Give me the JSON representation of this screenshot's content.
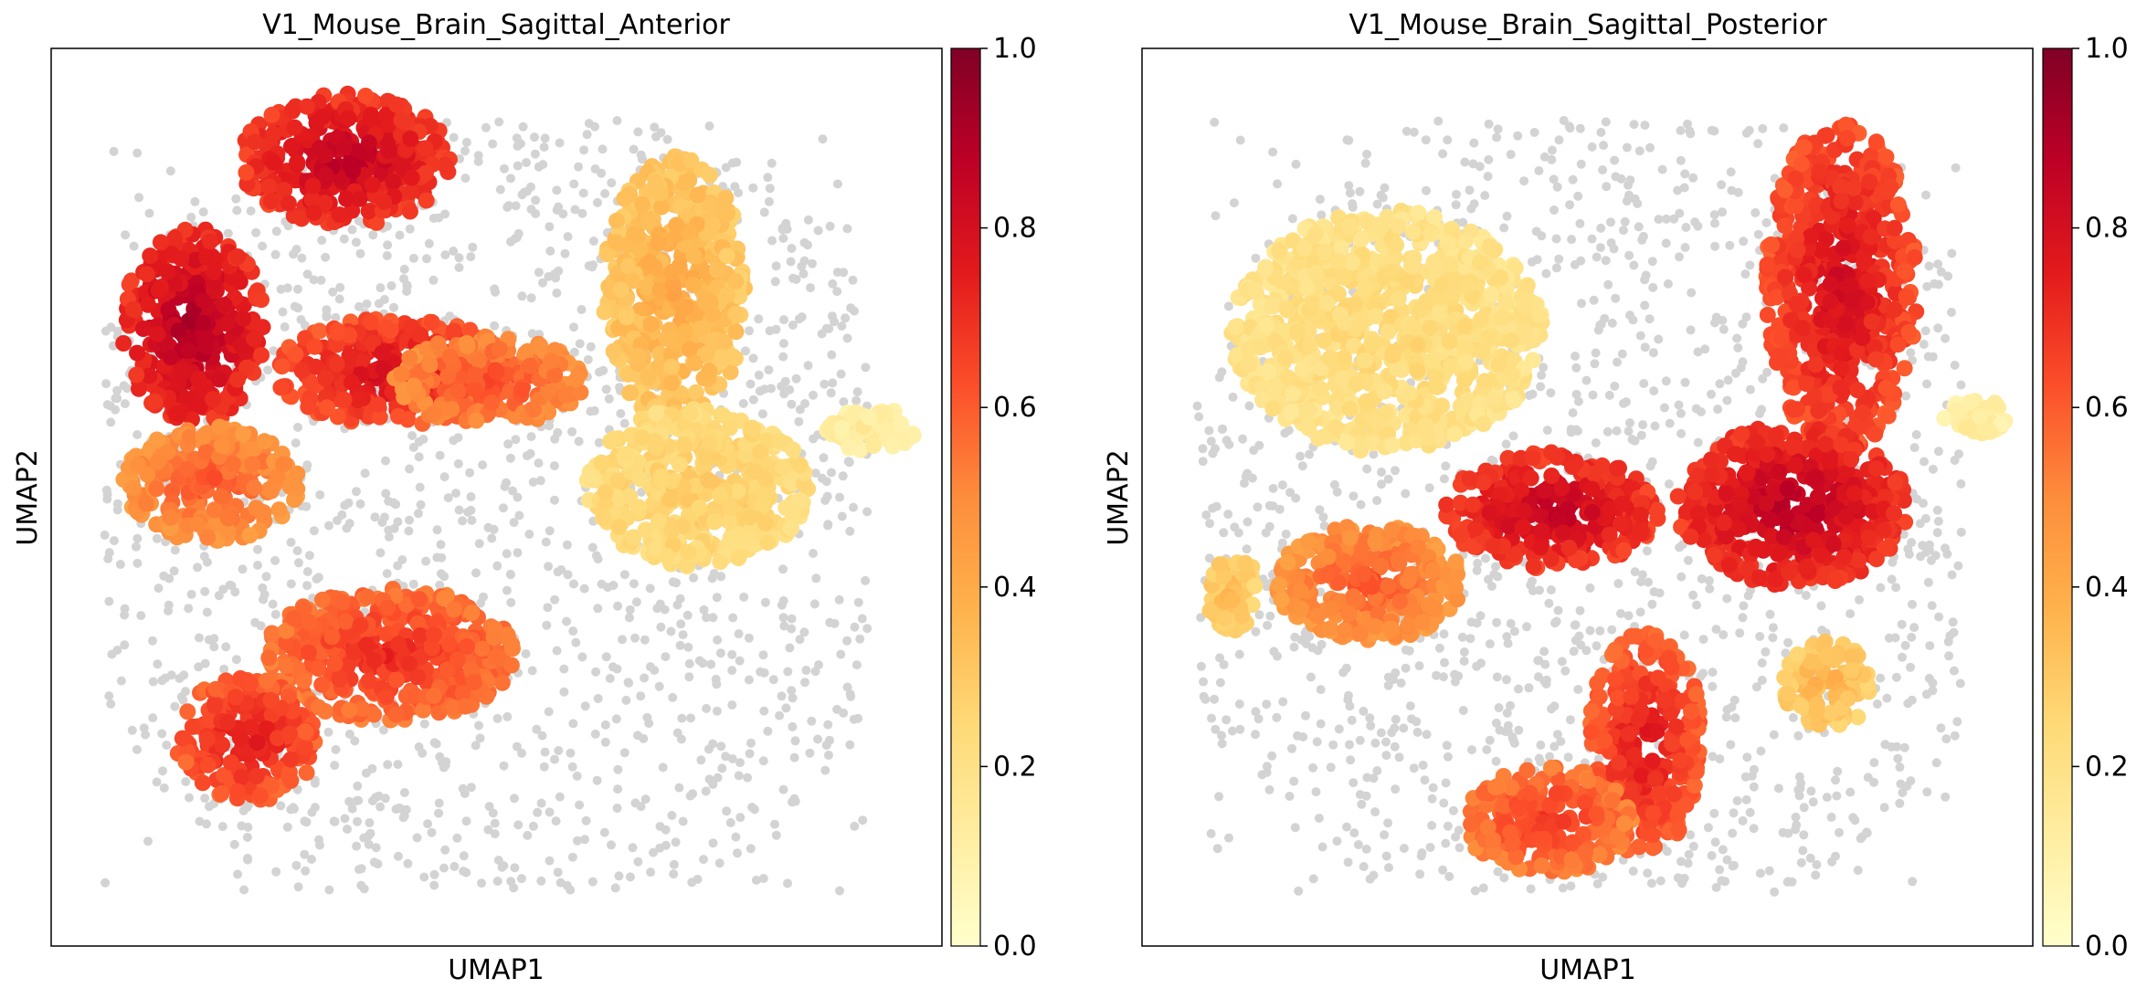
{
  "colors": {
    "background_points": "#d3d3d3",
    "axes": "#000000",
    "colormap": [
      "#ffffcc",
      "#ffeda0",
      "#fed976",
      "#feb24c",
      "#fd8d3c",
      "#fc4e2a",
      "#e31a1c",
      "#bd0026",
      "#800026"
    ]
  },
  "chart_data": [
    {
      "type": "scatter",
      "title": "V1_Mouse_Brain_Sagittal_Anterior",
      "xlabel": "UMAP1",
      "ylabel": "UMAP2",
      "grid": false,
      "x_ticks": "none",
      "y_ticks": "none",
      "colorbar": {
        "range": [
          0,
          1
        ],
        "ticks": [
          "0.0",
          "0.2",
          "0.4",
          "0.6",
          "0.8",
          "1.0"
        ],
        "colormap": "YlOrRd"
      },
      "background": "grey points for spots not in the selected group",
      "clusters": [
        {
          "x": [
            0.08,
            0.24
          ],
          "y": [
            0.58,
            0.8
          ],
          "value": 0.92
        },
        {
          "x": [
            0.21,
            0.45
          ],
          "y": [
            0.8,
            0.95
          ],
          "value": 0.88
        },
        {
          "x": [
            0.25,
            0.52
          ],
          "y": [
            0.58,
            0.7
          ],
          "value": 0.82
        },
        {
          "x": [
            0.38,
            0.6
          ],
          "y": [
            0.58,
            0.68
          ],
          "value": 0.65
        },
        {
          "x": [
            0.08,
            0.28
          ],
          "y": [
            0.45,
            0.58
          ],
          "value": 0.62
        },
        {
          "x": [
            0.24,
            0.52
          ],
          "y": [
            0.25,
            0.4
          ],
          "value": 0.72
        },
        {
          "x": [
            0.14,
            0.3
          ],
          "y": [
            0.16,
            0.3
          ],
          "value": 0.78
        },
        {
          "x": [
            0.62,
            0.78
          ],
          "y": [
            0.58,
            0.88
          ],
          "value": 0.4
        },
        {
          "x": [
            0.6,
            0.85
          ],
          "y": [
            0.42,
            0.6
          ],
          "value": 0.3
        },
        {
          "x": [
            0.87,
            0.97
          ],
          "y": [
            0.55,
            0.6
          ],
          "value": 0.15
        }
      ]
    },
    {
      "type": "scatter",
      "title": "V1_Mouse_Brain_Sagittal_Posterior",
      "xlabel": "UMAP1",
      "ylabel": "UMAP2",
      "grid": false,
      "x_ticks": "none",
      "y_ticks": "none",
      "colorbar": {
        "range": [
          0,
          1
        ],
        "ticks": [
          "0.0",
          "0.2",
          "0.4",
          "0.6",
          "0.8",
          "1.0"
        ],
        "colormap": "YlOrRd"
      },
      "background": "grey points for spots not in the selected group",
      "clusters": [
        {
          "x": [
            0.7,
            0.87
          ],
          "y": [
            0.55,
            0.92
          ],
          "value": 0.82
        },
        {
          "x": [
            0.6,
            0.86
          ],
          "y": [
            0.4,
            0.58
          ],
          "value": 0.9
        },
        {
          "x": [
            0.34,
            0.58
          ],
          "y": [
            0.42,
            0.55
          ],
          "value": 0.88
        },
        {
          "x": [
            0.15,
            0.36
          ],
          "y": [
            0.34,
            0.47
          ],
          "value": 0.62
        },
        {
          "x": [
            0.5,
            0.63
          ],
          "y": [
            0.1,
            0.35
          ],
          "value": 0.78
        },
        {
          "x": [
            0.36,
            0.55
          ],
          "y": [
            0.08,
            0.2
          ],
          "value": 0.7
        },
        {
          "x": [
            0.72,
            0.82
          ],
          "y": [
            0.24,
            0.34
          ],
          "value": 0.38
        },
        {
          "x": [
            0.07,
            0.13
          ],
          "y": [
            0.35,
            0.44
          ],
          "value": 0.35
        },
        {
          "x": [
            0.1,
            0.45
          ],
          "y": [
            0.55,
            0.82
          ],
          "value": 0.25
        },
        {
          "x": [
            0.9,
            0.97
          ],
          "y": [
            0.57,
            0.61
          ],
          "value": 0.15
        }
      ]
    }
  ]
}
